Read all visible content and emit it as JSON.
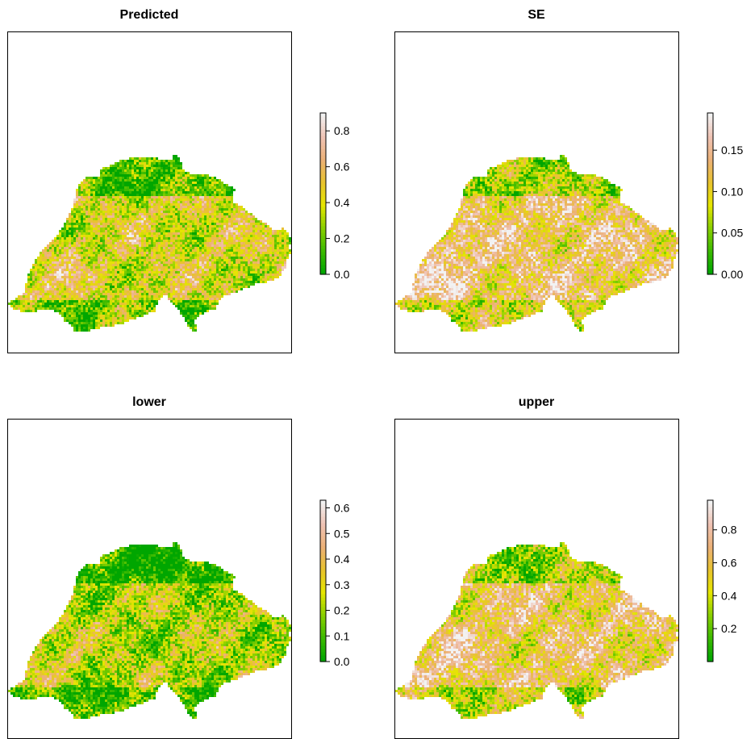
{
  "panels": [
    {
      "id": "predicted",
      "title": "Predicted",
      "legend": {
        "ticks": [
          {
            "label": "0.0",
            "value": 0.0
          },
          {
            "label": "0.2",
            "value": 0.2
          },
          {
            "label": "0.4",
            "value": 0.4
          },
          {
            "label": "0.6",
            "value": 0.6
          },
          {
            "label": "0.8",
            "value": 0.8
          }
        ],
        "range": [
          0.0,
          0.9
        ]
      }
    },
    {
      "id": "se",
      "title": "SE",
      "legend": {
        "ticks": [
          {
            "label": "0.00",
            "value": 0.0
          },
          {
            "label": "0.05",
            "value": 0.05
          },
          {
            "label": "0.10",
            "value": 0.1
          },
          {
            "label": "0.15",
            "value": 0.15
          }
        ],
        "range": [
          0.0,
          0.195
        ]
      }
    },
    {
      "id": "lower",
      "title": "lower",
      "legend": {
        "ticks": [
          {
            "label": "0.0",
            "value": 0.0
          },
          {
            "label": "0.1",
            "value": 0.1
          },
          {
            "label": "0.2",
            "value": 0.2
          },
          {
            "label": "0.3",
            "value": 0.3
          },
          {
            "label": "0.4",
            "value": 0.4
          },
          {
            "label": "0.5",
            "value": 0.5
          },
          {
            "label": "0.6",
            "value": 0.6
          }
        ],
        "range": [
          0.0,
          0.63
        ]
      }
    },
    {
      "id": "upper",
      "title": "upper",
      "legend": {
        "ticks": [
          {
            "label": "0.2",
            "value": 0.2
          },
          {
            "label": "0.4",
            "value": 0.4
          },
          {
            "label": "0.6",
            "value": 0.6
          },
          {
            "label": "0.8",
            "value": 0.8
          }
        ],
        "range": [
          0.0,
          0.98
        ]
      }
    }
  ],
  "colors": {
    "ramp": [
      "#00a600",
      "#3ebb00",
      "#8bd000",
      "#e6e600",
      "#e8c32e",
      "#ecb176",
      "#efc2b3",
      "#f2f2f2"
    ],
    "frame": "#000000",
    "background": "#ffffff"
  }
}
